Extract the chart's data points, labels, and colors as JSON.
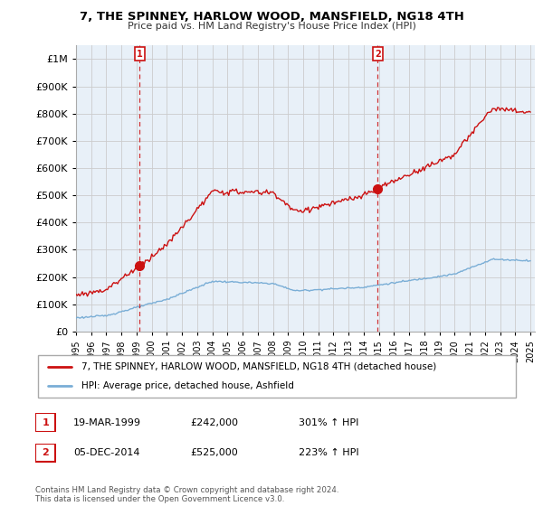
{
  "title": "7, THE SPINNEY, HARLOW WOOD, MANSFIELD, NG18 4TH",
  "subtitle": "Price paid vs. HM Land Registry's House Price Index (HPI)",
  "legend_line1": "7, THE SPINNEY, HARLOW WOOD, MANSFIELD, NG18 4TH (detached house)",
  "legend_line2": "HPI: Average price, detached house, Ashfield",
  "sale1_label": "1",
  "sale1_date": "19-MAR-1999",
  "sale1_price": "£242,000",
  "sale1_hpi": "301% ↑ HPI",
  "sale2_label": "2",
  "sale2_date": "05-DEC-2014",
  "sale2_price": "£525,000",
  "sale2_hpi": "223% ↑ HPI",
  "footnote": "Contains HM Land Registry data © Crown copyright and database right 2024.\nThis data is licensed under the Open Government Licence v3.0.",
  "hpi_color": "#7aaed6",
  "price_color": "#cc1111",
  "marker_color": "#cc1111",
  "background_color": "#ffffff",
  "plot_bg_color": "#e8f0f8",
  "grid_color": "#cccccc",
  "ylim_min": 0,
  "ylim_max": 1050000,
  "t_sale1": 1999.21,
  "t_sale2": 2014.92,
  "sale1_value": 242000,
  "sale2_value": 525000
}
